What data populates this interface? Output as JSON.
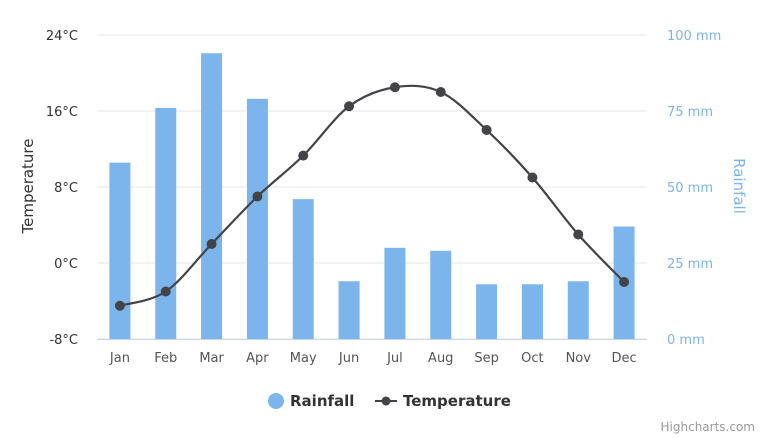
{
  "chart_data": {
    "type": "bar",
    "categories": [
      "Jan",
      "Feb",
      "Mar",
      "Apr",
      "May",
      "Jun",
      "Jul",
      "Aug",
      "Sep",
      "Oct",
      "Nov",
      "Dec"
    ],
    "series": [
      {
        "name": "Rainfall",
        "type": "bar",
        "axis": "right",
        "color": "#7cb5ec",
        "values": [
          58,
          76,
          94,
          79,
          46,
          19,
          30,
          29,
          18,
          18,
          19,
          37
        ]
      },
      {
        "name": "Temperature",
        "type": "line",
        "axis": "left",
        "color": "#434348",
        "values": [
          -4.5,
          -3.0,
          2.0,
          7.0,
          11.3,
          16.5,
          18.5,
          18.0,
          14.0,
          9.0,
          3.0,
          -2.0
        ]
      }
    ],
    "left_axis": {
      "title": "Temperature",
      "range": [
        -8,
        24
      ],
      "ticks": [
        "24°C",
        "16°C",
        "8°C",
        "0°C",
        "-8°C"
      ]
    },
    "right_axis": {
      "title": "Rainfall",
      "range": [
        0,
        100
      ],
      "ticks": [
        "100 mm",
        "75 mm",
        "50 mm",
        "25 mm",
        "0 mm"
      ]
    },
    "grid": true,
    "legend": {
      "placement": "bottom-center",
      "items": [
        "Rainfall",
        "Temperature"
      ]
    },
    "credits": "Highcharts.com"
  }
}
